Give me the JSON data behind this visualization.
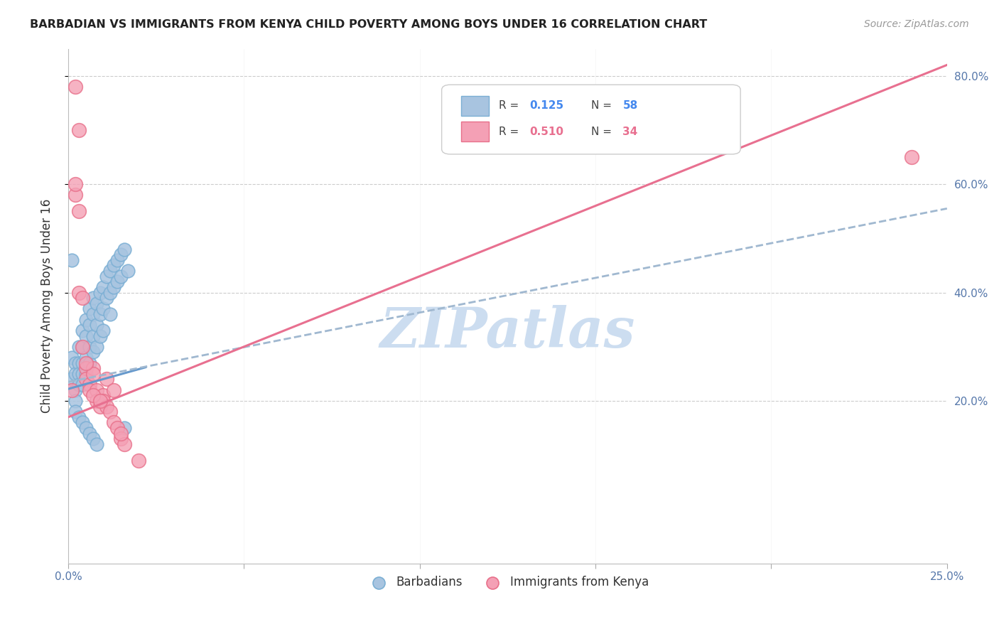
{
  "title": "BARBADIAN VS IMMIGRANTS FROM KENYA CHILD POVERTY AMONG BOYS UNDER 16 CORRELATION CHART",
  "source": "Source: ZipAtlas.com",
  "ylabel": "Child Poverty Among Boys Under 16",
  "xlim": [
    0.0,
    0.25
  ],
  "ylim": [
    -0.1,
    0.85
  ],
  "xticks": [
    0.0,
    0.05,
    0.1,
    0.15,
    0.2,
    0.25
  ],
  "yticks": [
    0.2,
    0.4,
    0.6,
    0.8
  ],
  "xtick_labels": [
    "0.0%",
    "",
    "",
    "",
    "",
    "25.0%"
  ],
  "ytick_labels": [
    "20.0%",
    "40.0%",
    "60.0%",
    "80.0%"
  ],
  "legend1_R": "0.125",
  "legend1_N": "58",
  "legend2_R": "0.510",
  "legend2_N": "34",
  "barbadian_color": "#a8c4e0",
  "kenya_color": "#f4a0b5",
  "barbadian_edge": "#7bafd4",
  "kenya_edge": "#e8708a",
  "line_blue": "#6699cc",
  "line_pink": "#e87090",
  "dashed_blue": "#a0b8d0",
  "watermark_color": "#ccddf0",
  "background": "#ffffff",
  "grid_color": "#cccccc",
  "barbadian_x": [
    0.001,
    0.001,
    0.002,
    0.002,
    0.002,
    0.002,
    0.003,
    0.003,
    0.003,
    0.003,
    0.004,
    0.004,
    0.004,
    0.004,
    0.004,
    0.005,
    0.005,
    0.005,
    0.005,
    0.006,
    0.006,
    0.006,
    0.006,
    0.007,
    0.007,
    0.007,
    0.007,
    0.008,
    0.008,
    0.008,
    0.009,
    0.009,
    0.009,
    0.01,
    0.01,
    0.01,
    0.011,
    0.011,
    0.012,
    0.012,
    0.012,
    0.013,
    0.013,
    0.014,
    0.014,
    0.015,
    0.015,
    0.016,
    0.016,
    0.017,
    0.001,
    0.002,
    0.003,
    0.004,
    0.005,
    0.006,
    0.007,
    0.008
  ],
  "barbadian_y": [
    0.28,
    0.24,
    0.27,
    0.25,
    0.22,
    0.2,
    0.3,
    0.27,
    0.25,
    0.23,
    0.33,
    0.3,
    0.27,
    0.25,
    0.23,
    0.35,
    0.32,
    0.28,
    0.25,
    0.37,
    0.34,
    0.3,
    0.27,
    0.39,
    0.36,
    0.32,
    0.29,
    0.38,
    0.34,
    0.3,
    0.4,
    0.36,
    0.32,
    0.41,
    0.37,
    0.33,
    0.43,
    0.39,
    0.44,
    0.4,
    0.36,
    0.45,
    0.41,
    0.46,
    0.42,
    0.47,
    0.43,
    0.48,
    0.15,
    0.44,
    0.46,
    0.18,
    0.17,
    0.16,
    0.15,
    0.14,
    0.13,
    0.12
  ],
  "kenya_x": [
    0.001,
    0.002,
    0.002,
    0.003,
    0.003,
    0.004,
    0.004,
    0.005,
    0.005,
    0.006,
    0.006,
    0.007,
    0.007,
    0.008,
    0.008,
    0.009,
    0.01,
    0.01,
    0.011,
    0.012,
    0.013,
    0.014,
    0.015,
    0.016,
    0.002,
    0.003,
    0.005,
    0.007,
    0.009,
    0.011,
    0.013,
    0.015,
    0.02,
    0.24
  ],
  "kenya_y": [
    0.22,
    0.78,
    0.58,
    0.55,
    0.4,
    0.39,
    0.3,
    0.26,
    0.24,
    0.23,
    0.22,
    0.26,
    0.25,
    0.22,
    0.2,
    0.19,
    0.21,
    0.2,
    0.19,
    0.18,
    0.16,
    0.15,
    0.13,
    0.12,
    0.6,
    0.7,
    0.27,
    0.21,
    0.2,
    0.24,
    0.22,
    0.14,
    0.09,
    0.65
  ],
  "blue_line_x": [
    0.0,
    0.022
  ],
  "blue_line_y": [
    0.222,
    0.262
  ],
  "dash_line_x": [
    0.0,
    0.25
  ],
  "dash_line_y": [
    0.235,
    0.555
  ],
  "pink_line_x": [
    0.0,
    0.25
  ],
  "pink_line_y": [
    0.17,
    0.82
  ]
}
